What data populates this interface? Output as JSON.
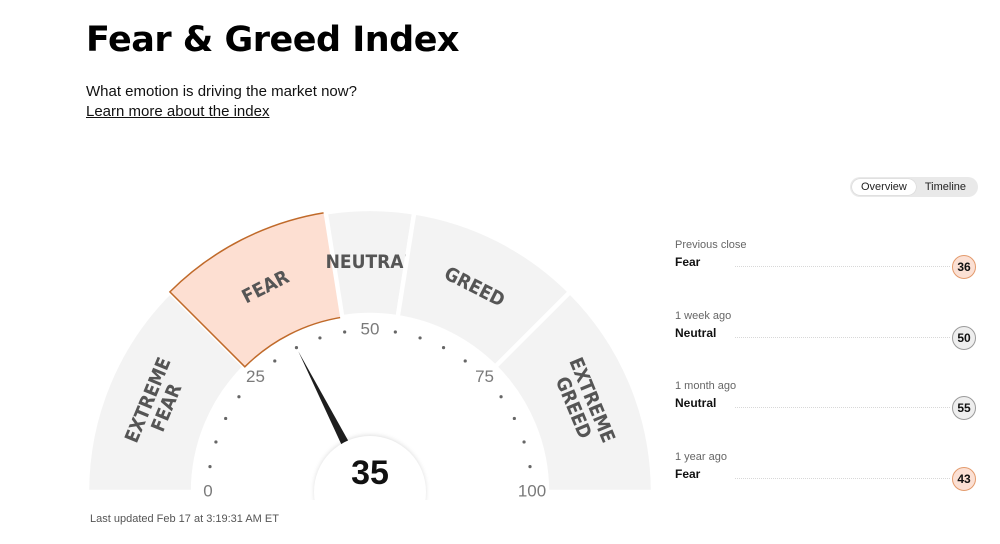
{
  "header": {
    "title": "Fear & Greed Index",
    "subtitle": "What emotion is driving the market now?",
    "learn_more": "Learn more about the index"
  },
  "view_toggle": {
    "options": [
      "Overview",
      "Timeline"
    ],
    "selected": "Overview"
  },
  "gauge": {
    "value": 35,
    "value_label": "35",
    "scale_min": 0,
    "scale_max": 100,
    "tick_labels": [
      "0",
      "25",
      "50",
      "75",
      "100"
    ],
    "segments": [
      {
        "lines": [
          "EXTREME",
          "FEAR"
        ],
        "from": 0,
        "to": 25,
        "active": false
      },
      {
        "lines": [
          "FEAR"
        ],
        "from": 25,
        "to": 45,
        "active": true
      },
      {
        "lines": [
          "NEUTRAL"
        ],
        "from": 45,
        "to": 55,
        "active": false
      },
      {
        "lines": [
          "GREED"
        ],
        "from": 55,
        "to": 75,
        "active": false
      },
      {
        "lines": [
          "EXTREME",
          "GREED"
        ],
        "from": 75,
        "to": 100,
        "active": false
      }
    ],
    "colors": {
      "segment_fill": "#f3f3f3",
      "active_fill": "#fddfd2",
      "active_stroke": "#c06a2a",
      "needle": "#1e1e1e",
      "label": "#555555",
      "tick_label": "#7a7a7a"
    }
  },
  "history": [
    {
      "period": "Previous close",
      "rating": "Fear",
      "value": "36",
      "type": "fear"
    },
    {
      "period": "1 week ago",
      "rating": "Neutral",
      "value": "50",
      "type": "neutral"
    },
    {
      "period": "1 month ago",
      "rating": "Neutral",
      "value": "55",
      "type": "neutral"
    },
    {
      "period": "1 year ago",
      "rating": "Fear",
      "value": "43",
      "type": "fear"
    }
  ],
  "footer": {
    "last_updated": "Last updated Feb 17 at 3:19:31 AM ET"
  }
}
